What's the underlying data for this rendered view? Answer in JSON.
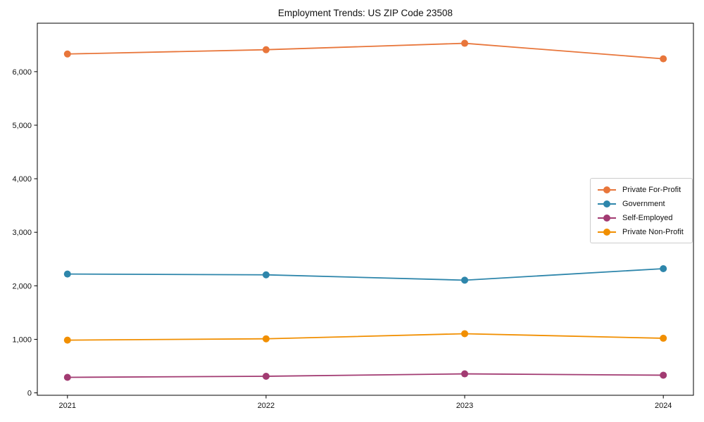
{
  "chart_data": {
    "type": "line",
    "title": "Employment Trends: US ZIP Code 23508",
    "xlabel": "",
    "ylabel": "",
    "x": [
      2021,
      2022,
      2023,
      2024
    ],
    "xticklabels": [
      "2021",
      "2022",
      "2023",
      "2024"
    ],
    "ytick_values": [
      0,
      1000,
      2000,
      3000,
      4000,
      5000,
      6000
    ],
    "yticklabels": [
      "0",
      "1,000",
      "2,000",
      "3,000",
      "4,000",
      "5,000",
      "6,000"
    ],
    "ylim": [
      -45,
      6905
    ],
    "grid": false,
    "legend_position": "center-right",
    "series": [
      {
        "name": "Private For-Profit",
        "color": "#E8763B",
        "values": [
          6330,
          6410,
          6530,
          6240
        ]
      },
      {
        "name": "Government",
        "color": "#2E86AB",
        "values": [
          2220,
          2205,
          2105,
          2320
        ]
      },
      {
        "name": "Self-Employed",
        "color": "#A23B72",
        "values": [
          290,
          310,
          355,
          330
        ]
      },
      {
        "name": "Private Non-Profit",
        "color": "#F18F01",
        "values": [
          985,
          1010,
          1105,
          1020
        ]
      }
    ]
  }
}
